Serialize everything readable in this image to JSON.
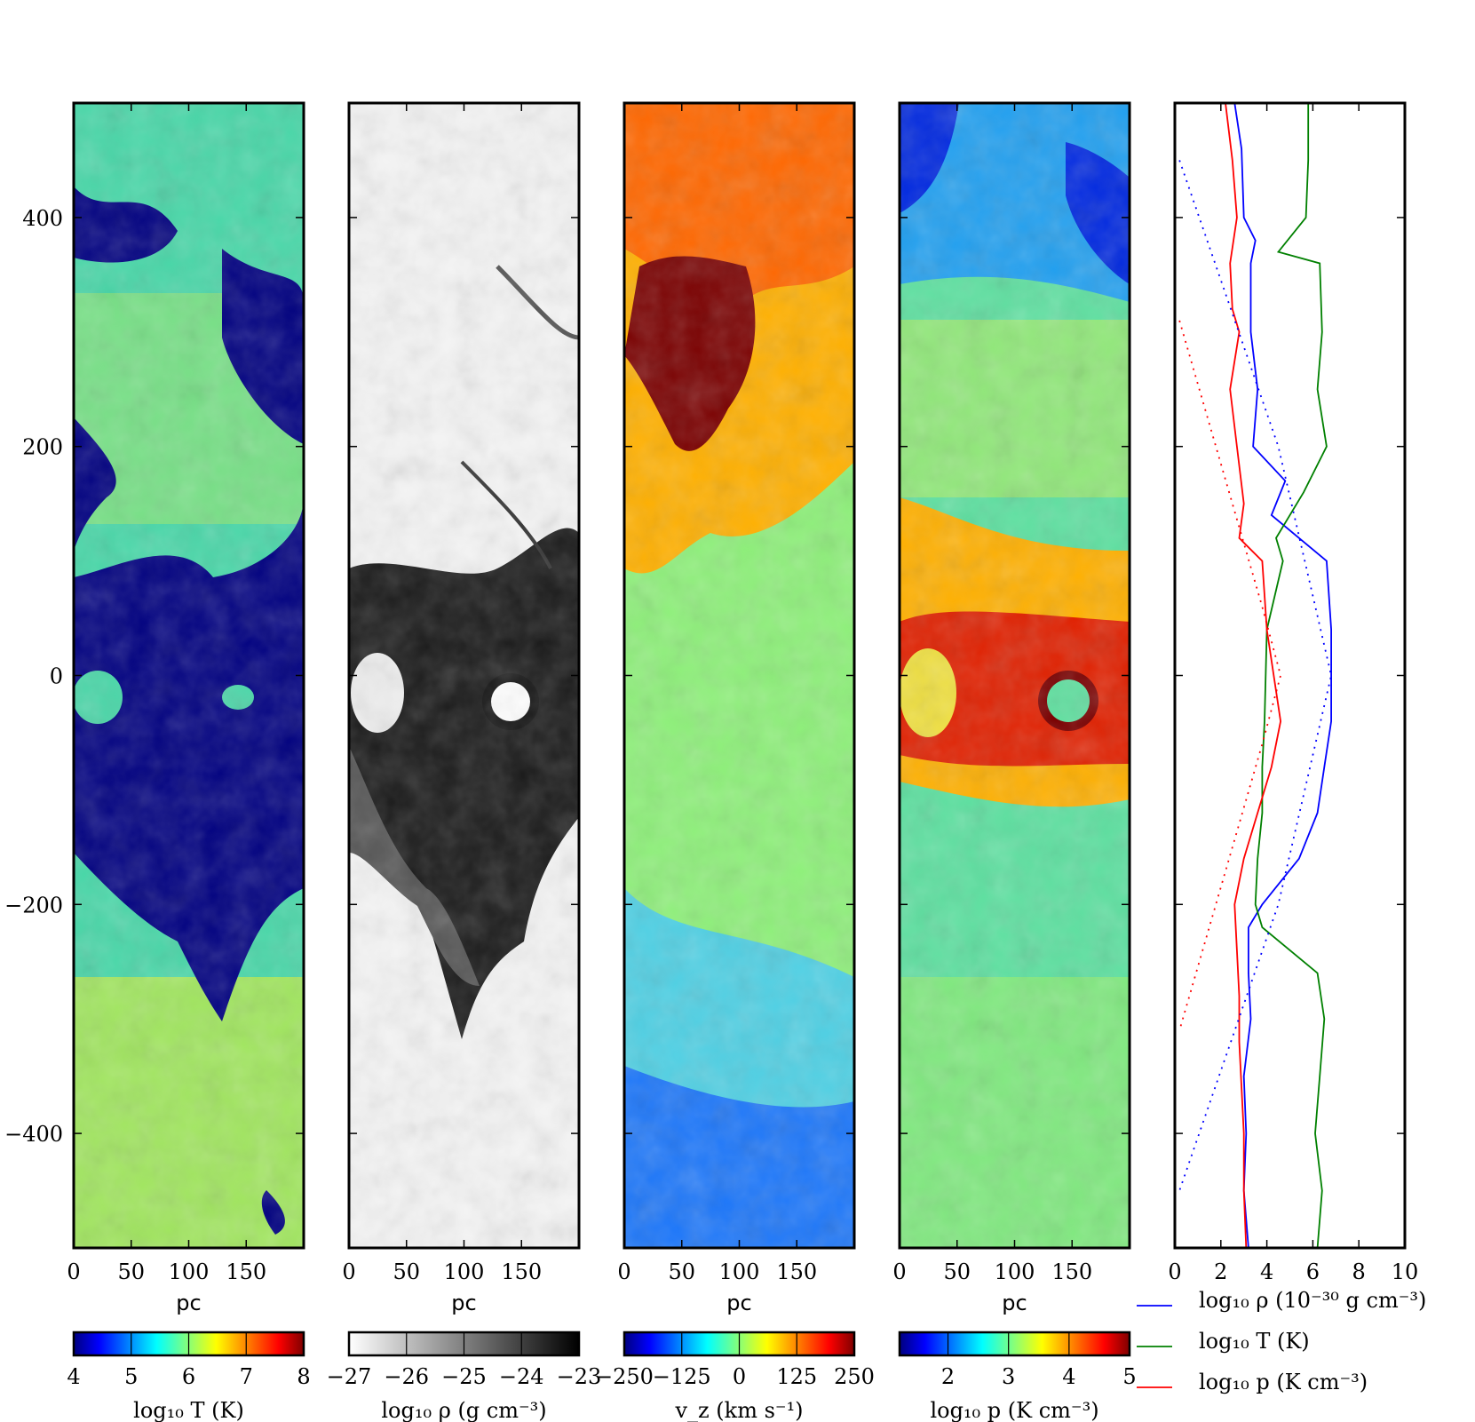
{
  "figure": {
    "y_axis": {
      "ylim": [
        -500,
        500
      ],
      "tick_values": [
        -400,
        -200,
        0,
        200,
        400
      ],
      "tick_labels": [
        "−400",
        "−200",
        "0",
        "200",
        "400"
      ]
    },
    "x_axis": {
      "xlim": [
        0,
        200
      ],
      "tick_values": [
        0,
        50,
        100,
        150
      ],
      "tick_labels": [
        "0",
        "50",
        "100",
        "150"
      ],
      "label": "pc"
    },
    "panels": [
      {
        "kind": "map",
        "quantity": "temperature",
        "colormap": "jet",
        "colorbar": {
          "range": [
            4,
            8
          ],
          "tick_values": [
            4,
            5,
            6,
            7,
            8
          ],
          "tick_labels": [
            "4",
            "5",
            "6",
            "7",
            "8"
          ],
          "label": "log₁₀ T (K)"
        },
        "colors": {
          "cold_gas": "#000080",
          "warm_gas": "#48d7a8",
          "hot_gas": "#c8ec40"
        }
      },
      {
        "kind": "map",
        "quantity": "density",
        "colormap": "gray_r",
        "colorbar": {
          "range": [
            -27,
            -23
          ],
          "tick_values": [
            -27,
            -26,
            -25,
            -24,
            -23
          ],
          "tick_labels": [
            "−27",
            "−26",
            "−25",
            "−24",
            "−23"
          ],
          "label": "log₁₀ ρ (g cm⁻³)"
        },
        "colors": {
          "dense_gas": "#111111",
          "diffuse_gas": "#f4f4f4"
        }
      },
      {
        "kind": "map",
        "quantity": "vertical_velocity",
        "colormap": "jet",
        "colorbar": {
          "range": [
            -250,
            250
          ],
          "tick_values": [
            -250,
            -125,
            0,
            125,
            250
          ],
          "tick_labels": [
            "−250",
            "−125",
            "0",
            "125",
            "250"
          ],
          "label": "v_z (km s⁻¹)"
        },
        "colors": {
          "outflow": "#7a0000",
          "inflow": "#1060ff",
          "static": "#8ef07a"
        }
      },
      {
        "kind": "map",
        "quantity": "pressure",
        "colormap": "jet",
        "colorbar": {
          "range": [
            1.2,
            5
          ],
          "tick_values": [
            2,
            3,
            4,
            5
          ],
          "tick_labels": [
            "2",
            "3",
            "4",
            "5"
          ],
          "label": "log₁₀ p (K cm⁻³)"
        },
        "colors": {
          "low": "#0028e0",
          "mid": "#44d0d0",
          "high": "#e02000"
        }
      },
      {
        "kind": "line",
        "xlim": [
          0,
          10
        ],
        "x_tick_values": [
          0,
          2,
          4,
          6,
          8,
          10
        ],
        "x_tick_labels": [
          "0",
          "2",
          "4",
          "6",
          "8",
          "10"
        ]
      }
    ]
  },
  "chart_data": {
    "type": "line",
    "xlim": [
      0,
      10
    ],
    "ylim": [
      -500,
      500
    ],
    "ylabel_units": "pc",
    "series": [
      {
        "name": "log₁₀ ρ (10⁻³⁰ g cm⁻³)",
        "color": "#0000ff",
        "style": "solid",
        "x": [
          2.6,
          2.9,
          3.0,
          3.5,
          3.3,
          3.3,
          3.6,
          3.4,
          4.8,
          4.2,
          6.6,
          6.8,
          6.8,
          6.5,
          6.2,
          5.4,
          3.8,
          3.2,
          3.2,
          3.3,
          3.0,
          3.1,
          3.0,
          3.2
        ],
        "y": [
          500,
          460,
          400,
          380,
          360,
          300,
          250,
          200,
          170,
          140,
          100,
          40,
          -40,
          -80,
          -120,
          -160,
          -200,
          -220,
          -260,
          -300,
          -350,
          -400,
          -450,
          -500
        ]
      },
      {
        "name": "log₁₀ T (K)",
        "color": "#008000",
        "style": "solid",
        "x": [
          5.8,
          5.8,
          5.7,
          4.5,
          6.3,
          6.4,
          6.2,
          6.6,
          5.6,
          4.4,
          4.7,
          4.0,
          3.9,
          3.8,
          3.8,
          3.6,
          3.5,
          3.8,
          6.2,
          6.5,
          6.3,
          6.1,
          6.4,
          6.2
        ],
        "y": [
          500,
          450,
          400,
          370,
          360,
          300,
          250,
          200,
          160,
          120,
          100,
          40,
          -40,
          -80,
          -120,
          -160,
          -200,
          -220,
          -260,
          -300,
          -350,
          -400,
          -450,
          -500
        ]
      },
      {
        "name": "log₁₀ p (K cm⁻³)",
        "color": "#ff0000",
        "style": "solid",
        "x": [
          2.2,
          2.5,
          2.7,
          2.4,
          2.5,
          2.8,
          2.4,
          2.7,
          3.0,
          2.8,
          3.8,
          4.0,
          4.6,
          4.2,
          3.6,
          3.0,
          2.6,
          2.7,
          2.8,
          2.8,
          2.9,
          3.0,
          3.0,
          3.1
        ],
        "y": [
          500,
          450,
          400,
          360,
          320,
          300,
          250,
          200,
          150,
          120,
          100,
          40,
          -40,
          -80,
          -120,
          -160,
          -200,
          -240,
          -280,
          -320,
          -360,
          -400,
          -450,
          -500
        ]
      },
      {
        "name": "",
        "color": "#0000ff",
        "style": "dotted",
        "x": [
          0.2,
          4.5,
          6.8,
          4.5,
          0.2
        ],
        "y": [
          450,
          200,
          0,
          -200,
          -450
        ]
      },
      {
        "name": "",
        "color": "#ff0000",
        "style": "dotted",
        "x": [
          0.2,
          3.8,
          4.6,
          3.8,
          0.2
        ],
        "y": [
          310,
          60,
          0,
          -60,
          -310
        ]
      }
    ]
  }
}
